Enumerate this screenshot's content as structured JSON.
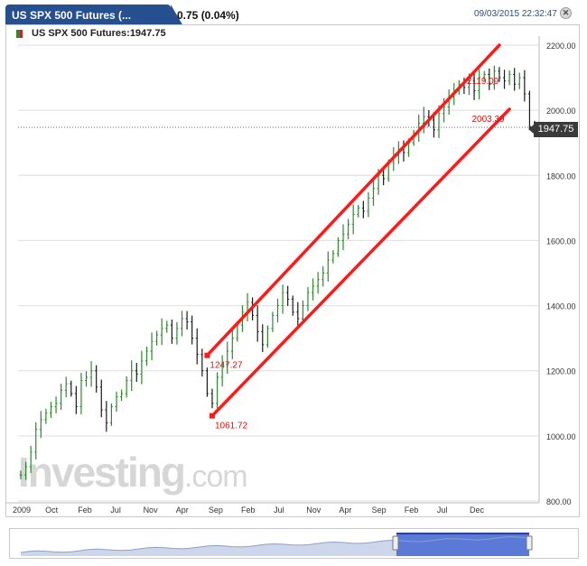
{
  "header": {
    "tab_title": "US SPX 500 Futures (...",
    "change": "0.75 (0.04%)",
    "datetime": "09/03/2015 22:32:47",
    "close_label": "✕",
    "legend": "US SPX 500 Futures:1947.75"
  },
  "brand": {
    "name": "Investing",
    "suffix": ".com"
  },
  "price_box": "1947.75",
  "colors": {
    "up": "#2c8a2c",
    "down": "#1a1a1a",
    "channel": "#ff1a1a",
    "tab": "#254f8f",
    "navigator_fill": "#5b79d6"
  },
  "chart_data": {
    "type": "line",
    "ylim": [
      800,
      2200
    ],
    "y_ticks": [
      "800.00",
      "1000.00",
      "1200.00",
      "1400.00",
      "1600.00",
      "1800.00",
      "2000.00",
      "2200.00"
    ],
    "x_tick_labels": [
      "2009",
      "Oct",
      "Feb",
      "Jul",
      "Nov",
      "Apr",
      "Sep",
      "Feb",
      "Jul",
      "Nov",
      "Apr",
      "Sep",
      "Feb",
      "Jul",
      "Dec"
    ],
    "last_price": 1947.75,
    "series": [
      {
        "values": [
          880,
          905,
          950,
          1020,
          1050,
          1070,
          1090,
          1100,
          1140,
          1160,
          1130,
          1090,
          1170,
          1180,
          1200,
          1150,
          1080,
          1040,
          1090,
          1120,
          1130,
          1170,
          1200,
          1190,
          1230,
          1260,
          1290,
          1310,
          1330,
          1340,
          1300,
          1330,
          1360,
          1350,
          1300,
          1250,
          1200,
          1130,
          1100,
          1180,
          1220,
          1260,
          1300,
          1340,
          1380,
          1410,
          1370,
          1320,
          1280,
          1330,
          1370,
          1400,
          1440,
          1420,
          1380,
          1360,
          1400,
          1440,
          1460,
          1480,
          1500,
          1540,
          1560,
          1600,
          1620,
          1650,
          1680,
          1700,
          1690,
          1730,
          1760,
          1800,
          1790,
          1840,
          1860,
          1880,
          1870,
          1900,
          1930,
          1960,
          1980,
          1970,
          1940,
          1990,
          2010,
          2040,
          2060,
          2080,
          2070,
          2090,
          2060,
          2100,
          2110,
          2080,
          2120,
          2100,
          2090,
          2110,
          2080,
          2100,
          2050,
          1950,
          1947.75
        ]
      }
    ],
    "annotations": [
      {
        "label": "1247.27",
        "x_index": 37,
        "y": 1247.27
      },
      {
        "label": "1061.72",
        "x_index": 38,
        "y": 1061.72
      },
      {
        "label": "2119.09",
        "x_index": 88,
        "y": 2119.09
      },
      {
        "label": "2003.39",
        "x_index": 89,
        "y": 2003.39
      }
    ],
    "channel_lines": [
      {
        "from": {
          "x_index": 37,
          "y": 1247.27
        },
        "to": {
          "x_index": 95,
          "y": 2200
        }
      },
      {
        "from": {
          "x_index": 38,
          "y": 1061.72
        },
        "to": {
          "x_index": 97,
          "y": 2003.39
        }
      }
    ],
    "grid": true
  }
}
